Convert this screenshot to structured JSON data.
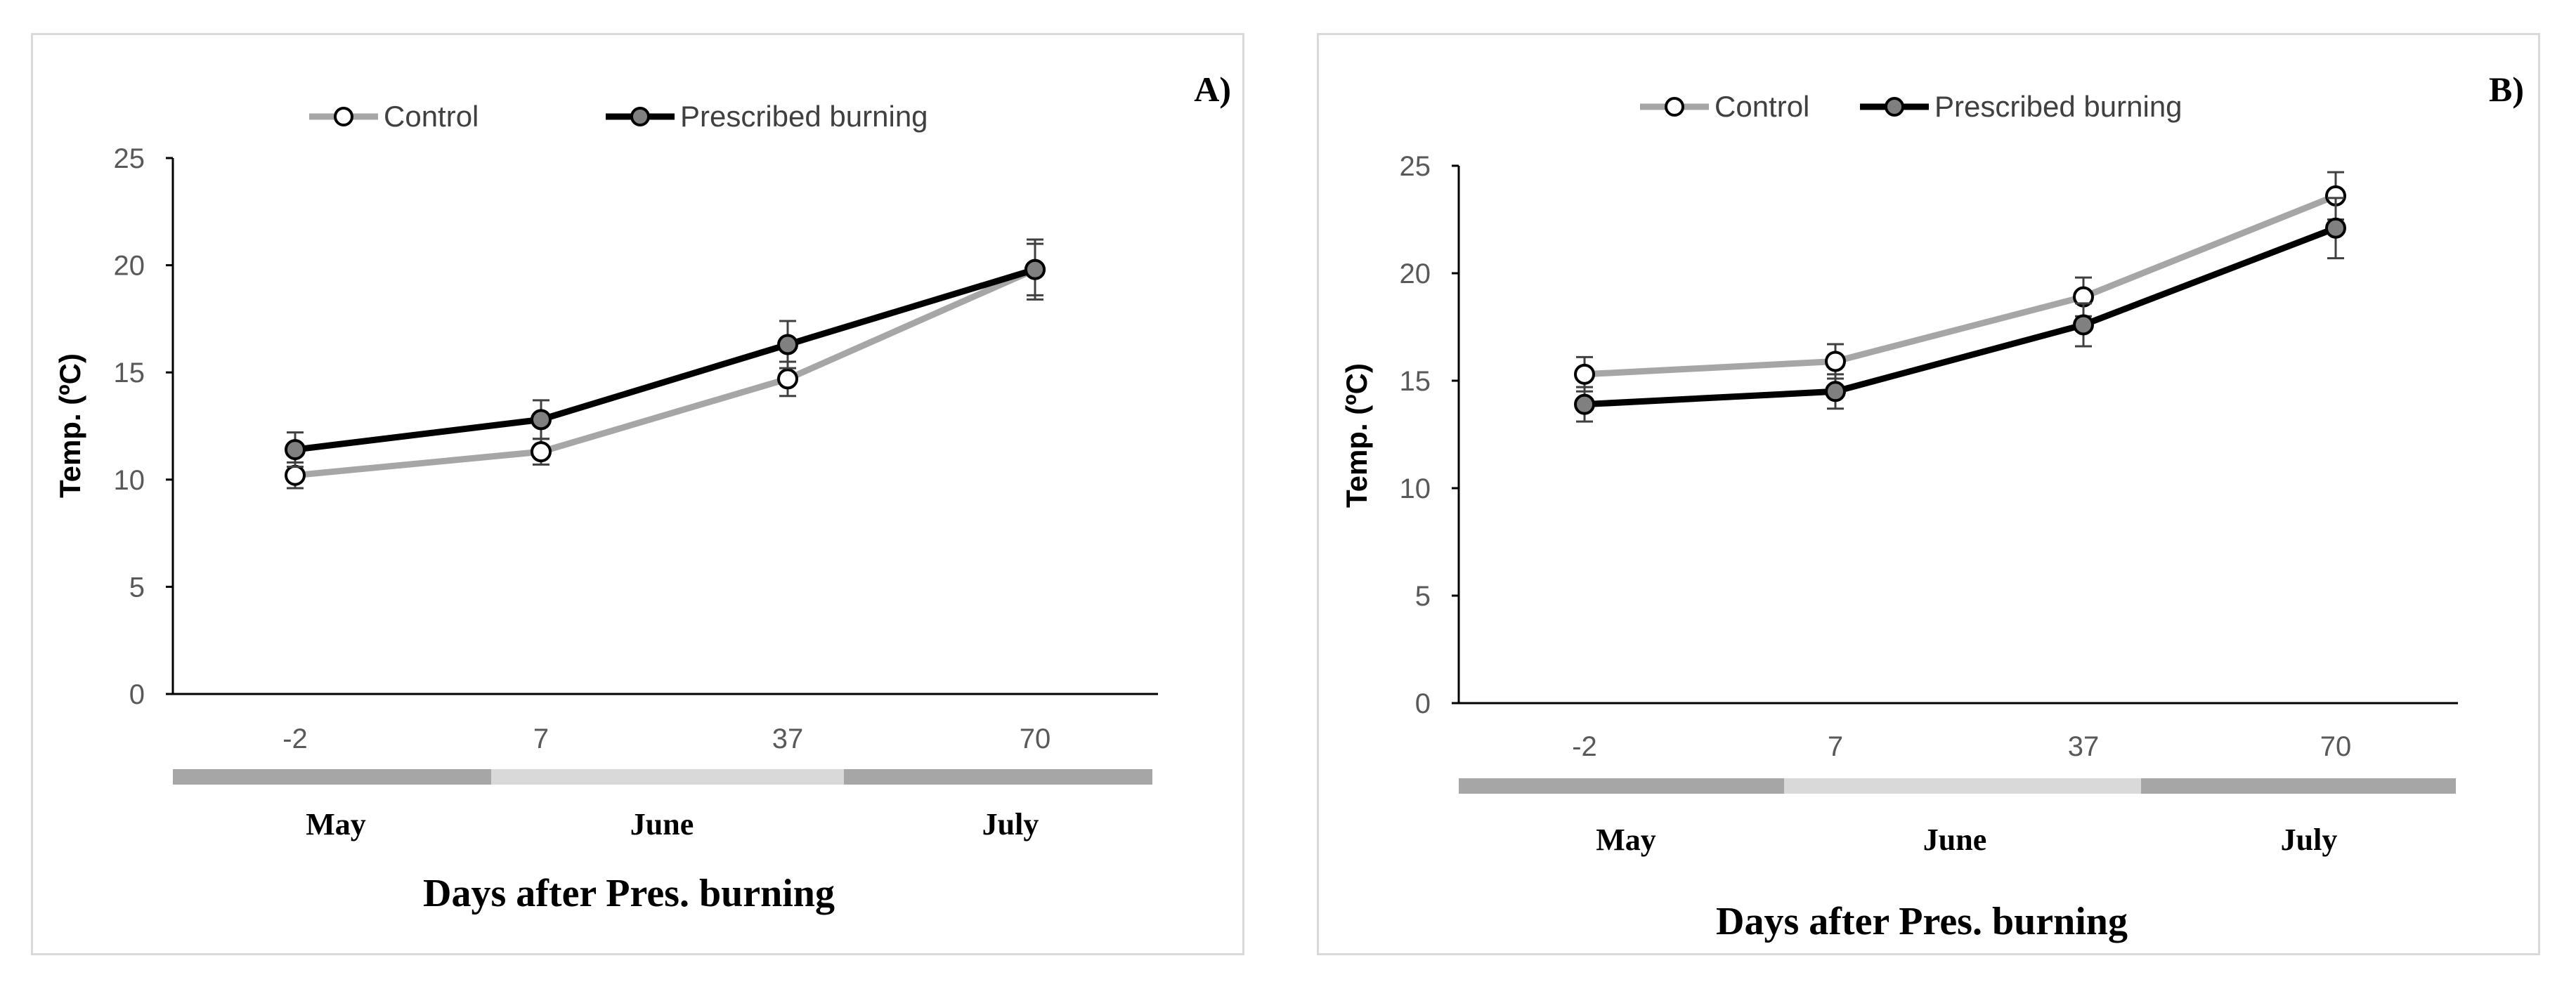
{
  "chart_data": [
    {
      "type": "line",
      "panel_label": "A)",
      "categories": [
        "-2",
        "7",
        "37",
        "70"
      ],
      "series": [
        {
          "name": "Control",
          "values": [
            10.2,
            11.3,
            14.7,
            19.8
          ],
          "errors": [
            0.6,
            0.6,
            0.8,
            1.2
          ],
          "color": "#a6a6a6",
          "marker_fill": "#ffffff"
        },
        {
          "name": "Prescribed burning",
          "values": [
            11.4,
            12.8,
            16.3,
            19.8
          ],
          "errors": [
            0.8,
            0.9,
            1.1,
            1.4
          ],
          "color": "#000000",
          "marker_fill": "#808080"
        }
      ],
      "ylabel": "Temp.  (ºC)",
      "xlabel": "Days after Pres. burning",
      "ylim": [
        0,
        25
      ],
      "yticks": [
        "0",
        "5",
        "10",
        "15",
        "20",
        "25"
      ],
      "months": [
        "May",
        "June",
        "July"
      ],
      "month_band_colors": [
        "#a6a6a6",
        "#d9d9d9",
        "#a6a6a6"
      ],
      "legend": [
        "Control",
        "Prescribed burning"
      ]
    },
    {
      "type": "line",
      "panel_label": "B)",
      "categories": [
        "-2",
        "7",
        "37",
        "70"
      ],
      "series": [
        {
          "name": "Control",
          "values": [
            15.3,
            15.9,
            18.9,
            23.6
          ],
          "errors": [
            0.8,
            0.8,
            0.9,
            1.1
          ],
          "color": "#a6a6a6",
          "marker_fill": "#ffffff"
        },
        {
          "name": "Prescribed burning",
          "values": [
            13.9,
            14.5,
            17.6,
            22.1
          ],
          "errors": [
            0.8,
            0.8,
            1.0,
            1.4
          ],
          "color": "#000000",
          "marker_fill": "#808080"
        }
      ],
      "ylabel": "Temp.  (ºC)",
      "xlabel": "Days after Pres. burning",
      "ylim": [
        0,
        25
      ],
      "yticks": [
        "0",
        "5",
        "10",
        "15",
        "20",
        "25"
      ],
      "months": [
        "May",
        "June",
        "July"
      ],
      "month_band_colors": [
        "#a6a6a6",
        "#d9d9d9",
        "#a6a6a6"
      ],
      "legend": [
        "Control",
        "Prescribed burning"
      ]
    }
  ]
}
